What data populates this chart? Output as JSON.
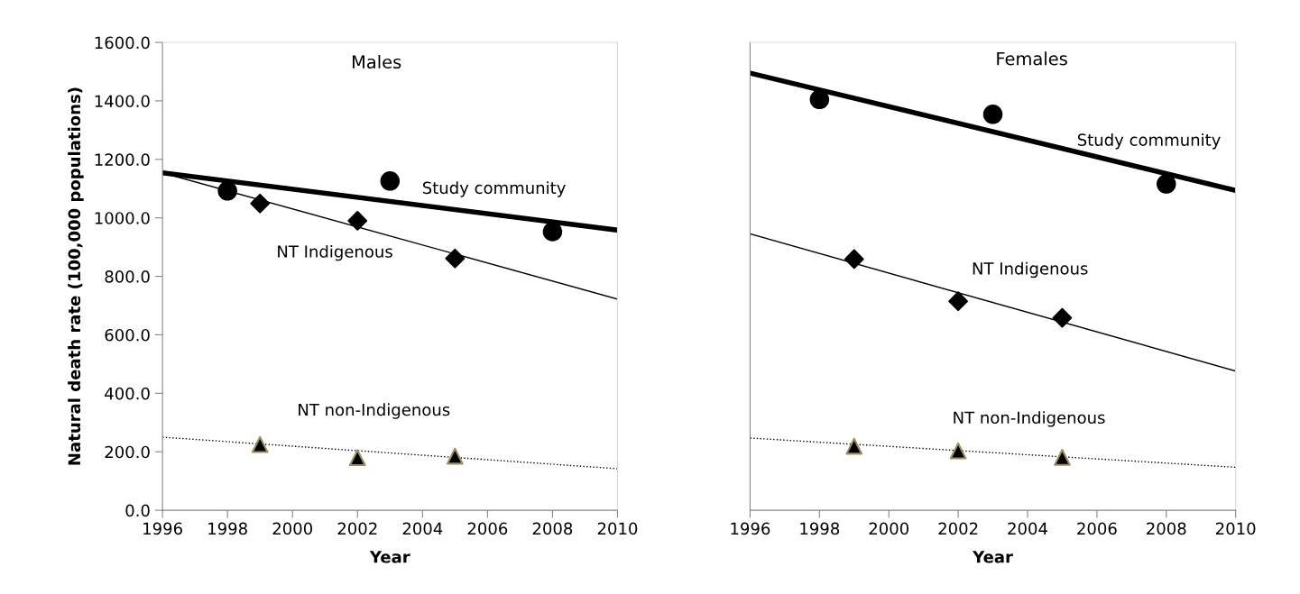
{
  "chart_data": [
    {
      "type": "scatter",
      "title": "Males",
      "xlabel": "Year",
      "ylabel": "Natural death rate (100,000 populations)",
      "xlim": [
        1996,
        2010
      ],
      "xticks": [
        1996,
        1998,
        2000,
        2002,
        2004,
        2006,
        2008,
        2010
      ],
      "ylim": [
        0,
        1600
      ],
      "yticks": [
        {
          "value": 0,
          "label": "0.0"
        },
        {
          "value": 200,
          "label": "200.0"
        },
        {
          "value": 400,
          "label": "400.0"
        },
        {
          "value": 600,
          "label": "600.0"
        },
        {
          "value": 800,
          "label": "800.0"
        },
        {
          "value": 1000,
          "label": "1000.0"
        },
        {
          "value": 1200,
          "label": "1200.0"
        },
        {
          "value": 1400,
          "label": "1400.0"
        },
        {
          "value": 1600,
          "label": "1600.0"
        }
      ],
      "grid": false,
      "legend": false,
      "series": [
        {
          "name": "Study community",
          "marker": "circle",
          "color": "#000000",
          "x": [
            1998,
            2003,
            2008
          ],
          "values": [
            1092,
            1126,
            953
          ]
        },
        {
          "type": "line",
          "line_style": "solid",
          "color": "#000000",
          "x": [
            1996,
            2010
          ],
          "values": [
            1154,
            958
          ]
        },
        {
          "name": "NT Indigenous",
          "marker": "diamond",
          "color": "#000000",
          "x": [
            1999,
            2002,
            2005
          ],
          "values": [
            1049,
            990,
            861
          ]
        },
        {
          "type": "line",
          "line_style": "solid",
          "color": "#000000",
          "x": [
            1996,
            2010
          ],
          "values": [
            1154,
            722
          ]
        },
        {
          "name": "NT non-Indigenous",
          "marker": "triangle",
          "color": "#000000",
          "x": [
            1999,
            2002,
            2005
          ],
          "values": [
            225,
            180,
            185
          ]
        },
        {
          "type": "line",
          "line_style": "dotted",
          "color": "#000000",
          "x": [
            1996,
            2010
          ],
          "values": [
            250,
            142
          ]
        }
      ]
    },
    {
      "type": "scatter",
      "title": "Females",
      "xlabel": "Year",
      "xlim": [
        1996,
        2010
      ],
      "xticks": [
        1996,
        1998,
        2000,
        2002,
        2004,
        2006,
        2008,
        2010
      ],
      "ylim": [
        0,
        1600
      ],
      "tick_labels": "x",
      "grid": false,
      "legend": false,
      "series": [
        {
          "name": "Study community",
          "marker": "circle",
          "color": "#000000",
          "x": [
            1998,
            2003,
            2008
          ],
          "values": [
            1405,
            1354,
            1116
          ]
        },
        {
          "type": "line",
          "line_style": "solid",
          "color": "#000000",
          "x": [
            1996,
            2010
          ],
          "values": [
            1495,
            1094
          ]
        },
        {
          "name": "NT Indigenous",
          "marker": "diamond",
          "color": "#000000",
          "x": [
            1999,
            2002,
            2005
          ],
          "values": [
            859,
            715,
            658
          ]
        },
        {
          "type": "line",
          "line_style": "solid",
          "color": "#000000",
          "x": [
            1996,
            2010
          ],
          "values": [
            945,
            476
          ]
        },
        {
          "name": "NT non-Indigenous",
          "marker": "triangle",
          "color": "#000000",
          "x": [
            1999,
            2002,
            2005
          ],
          "values": [
            219,
            203,
            181
          ]
        },
        {
          "type": "line",
          "line_style": "dotted",
          "color": "#000000",
          "x": [
            1996,
            2010
          ],
          "values": [
            247,
            147
          ]
        }
      ]
    }
  ]
}
